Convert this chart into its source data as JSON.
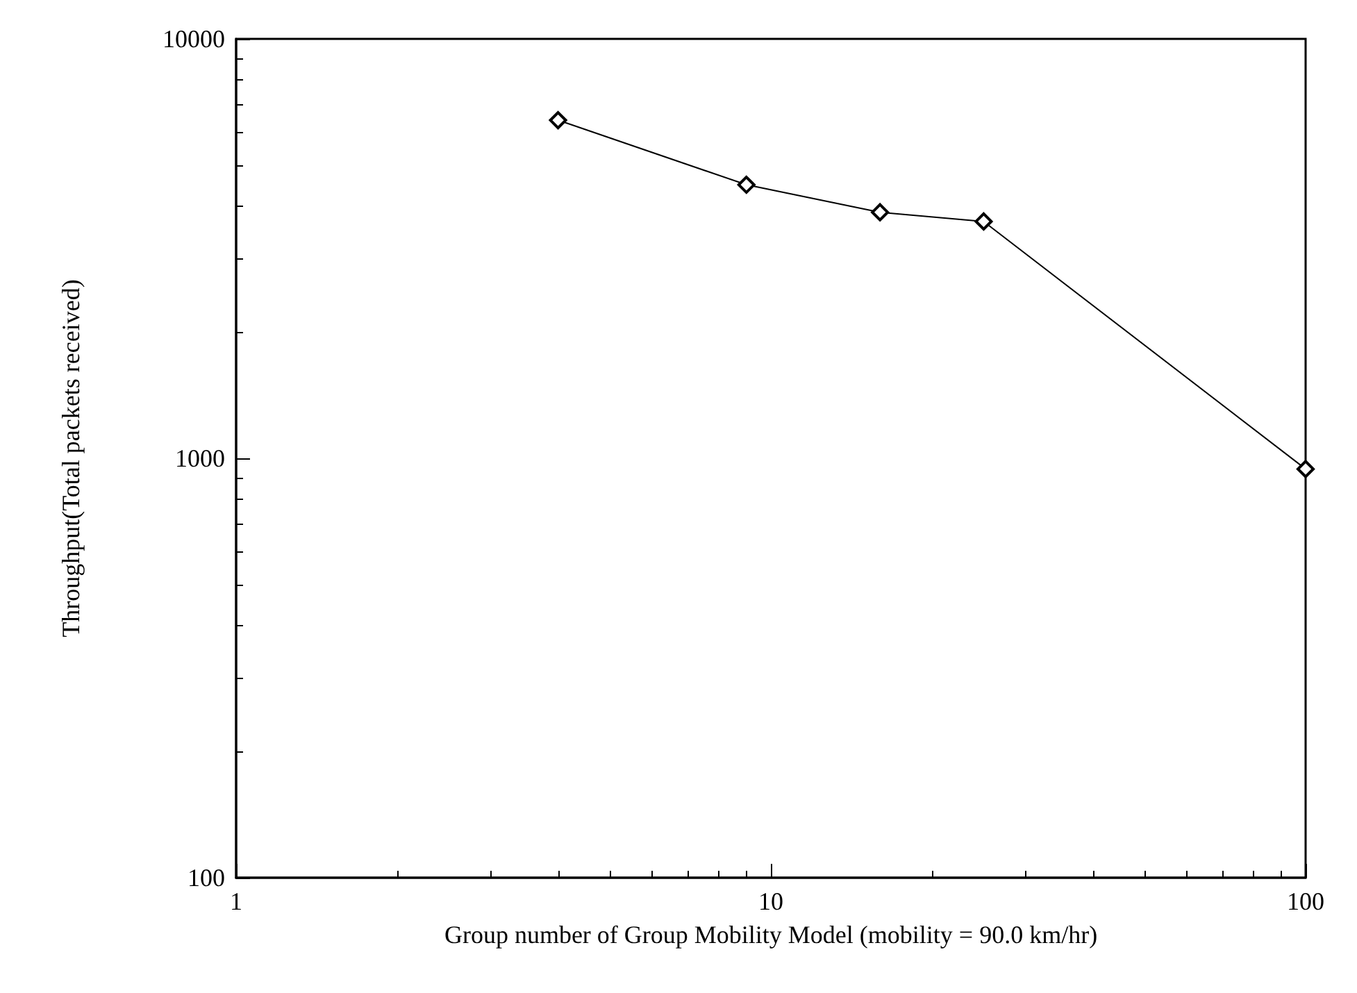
{
  "chart_data": {
    "type": "line",
    "xlabel": "Group number of Group Mobility Model (mobility = 90.0 km/hr)",
    "ylabel": "Throughput(Total packets received)",
    "x": [
      4,
      9,
      16,
      25,
      100
    ],
    "series": [
      {
        "color": "#000000",
        "values": [
          6400,
          4490,
          3860,
          3670,
          943
        ]
      }
    ],
    "log": "xy",
    "xlim": [
      1,
      100
    ],
    "xticks": [
      1,
      10,
      100
    ],
    "ylim": [
      100,
      10000
    ],
    "yticks": [
      100,
      1000,
      10000
    ],
    "grid": false,
    "marker": "diamond",
    "line_style": "solid"
  }
}
